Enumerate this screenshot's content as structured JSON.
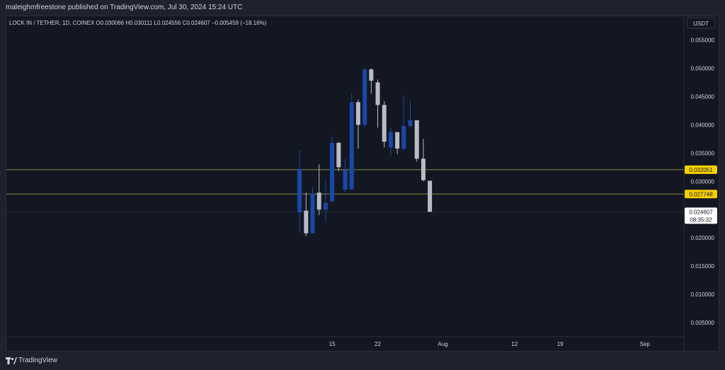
{
  "header": {
    "publish_line": "maleighmfreestone published on TradingView.com, Jul 30, 2024 15:24 UTC"
  },
  "chart_data": {
    "type": "candlestick",
    "symbol_line": "LOCK IN / TETHER, 1D, COINEX O0.030066 H0.030111 L0.024556 C0.024607 −0.005459 (−18.16%)",
    "currency_button": "USDT",
    "y_ticks": [
      0.055,
      0.05,
      0.045,
      0.04,
      0.035,
      0.03,
      0.02,
      0.015,
      0.01,
      0.005
    ],
    "y_tick_labels": [
      "0.055000",
      "0.050000",
      "0.045000",
      "0.040000",
      "0.035000",
      "0.030000",
      "0.020000",
      "0.015000",
      "0.010000",
      "0.005000"
    ],
    "ylim": [
      0.0025,
      0.0592
    ],
    "x_tick_labels": [
      {
        "label": "15",
        "day": 15
      },
      {
        "label": "22",
        "day": 22
      },
      {
        "label": "Aug",
        "day": 32
      },
      {
        "label": "12",
        "day": 43
      },
      {
        "label": "19",
        "day": 50
      },
      {
        "label": "Sep",
        "day": 63
      }
    ],
    "x_range_days": [
      -35,
      69
    ],
    "date_axis": "July 2024 day of month; 32 = Aug 1",
    "candles": [
      {
        "day": 10,
        "open": 0.0245,
        "high": 0.0355,
        "low": 0.021,
        "close": 0.0322
      },
      {
        "day": 11,
        "open": 0.0248,
        "high": 0.028,
        "low": 0.0203,
        "close": 0.0208
      },
      {
        "day": 12,
        "open": 0.0208,
        "high": 0.029,
        "low": 0.0208,
        "close": 0.0278
      },
      {
        "day": 13,
        "open": 0.028,
        "high": 0.033,
        "low": 0.024,
        "close": 0.025
      },
      {
        "day": 14,
        "open": 0.025,
        "high": 0.03,
        "low": 0.0228,
        "close": 0.0262
      },
      {
        "day": 15,
        "open": 0.0265,
        "high": 0.038,
        "low": 0.0262,
        "close": 0.0368
      },
      {
        "day": 16,
        "open": 0.0368,
        "high": 0.037,
        "low": 0.0318,
        "close": 0.0325
      },
      {
        "day": 17,
        "open": 0.0285,
        "high": 0.034,
        "low": 0.028,
        "close": 0.032
      },
      {
        "day": 18,
        "open": 0.0286,
        "high": 0.0455,
        "low": 0.0285,
        "close": 0.044
      },
      {
        "day": 19,
        "open": 0.044,
        "high": 0.0445,
        "low": 0.0358,
        "close": 0.04
      },
      {
        "day": 20,
        "open": 0.04,
        "high": 0.05,
        "low": 0.0395,
        "close": 0.0498
      },
      {
        "day": 21,
        "open": 0.0498,
        "high": 0.05,
        "low": 0.0455,
        "close": 0.0478
      },
      {
        "day": 22,
        "open": 0.0475,
        "high": 0.048,
        "low": 0.0395,
        "close": 0.0435
      },
      {
        "day": 23,
        "open": 0.0435,
        "high": 0.0442,
        "low": 0.036,
        "close": 0.037
      },
      {
        "day": 24,
        "open": 0.036,
        "high": 0.0395,
        "low": 0.0345,
        "close": 0.0387
      },
      {
        "day": 25,
        "open": 0.0387,
        "high": 0.0387,
        "low": 0.0348,
        "close": 0.0358
      },
      {
        "day": 26,
        "open": 0.0358,
        "high": 0.0452,
        "low": 0.0355,
        "close": 0.0398
      },
      {
        "day": 27,
        "open": 0.0398,
        "high": 0.0442,
        "low": 0.0395,
        "close": 0.0408
      },
      {
        "day": 28,
        "open": 0.0408,
        "high": 0.0408,
        "low": 0.0335,
        "close": 0.034
      },
      {
        "day": 29,
        "open": 0.034,
        "high": 0.0375,
        "low": 0.03,
        "close": 0.0302
      },
      {
        "day": 30,
        "open": 0.0301,
        "high": 0.0301,
        "low": 0.0246,
        "close": 0.0246
      }
    ],
    "levels": [
      {
        "value": 0.032051,
        "label": "0.032051",
        "color": "#8b8b38",
        "badge_color": "#f5d000"
      },
      {
        "value": 0.027748,
        "label": "0.027748",
        "color": "#8b8b38",
        "badge_color": "#f5d000"
      }
    ],
    "last_price": {
      "value": 0.024607,
      "label": "0.024607",
      "countdown": "08:35:32"
    },
    "colors": {
      "up": "#1848a8",
      "down": "#b9bcc6",
      "background": "#131722",
      "axis_text": "#d1d4dc"
    }
  },
  "footer": {
    "brand": "TradingView",
    "logo_icon": "tradingview-logo-icon"
  }
}
